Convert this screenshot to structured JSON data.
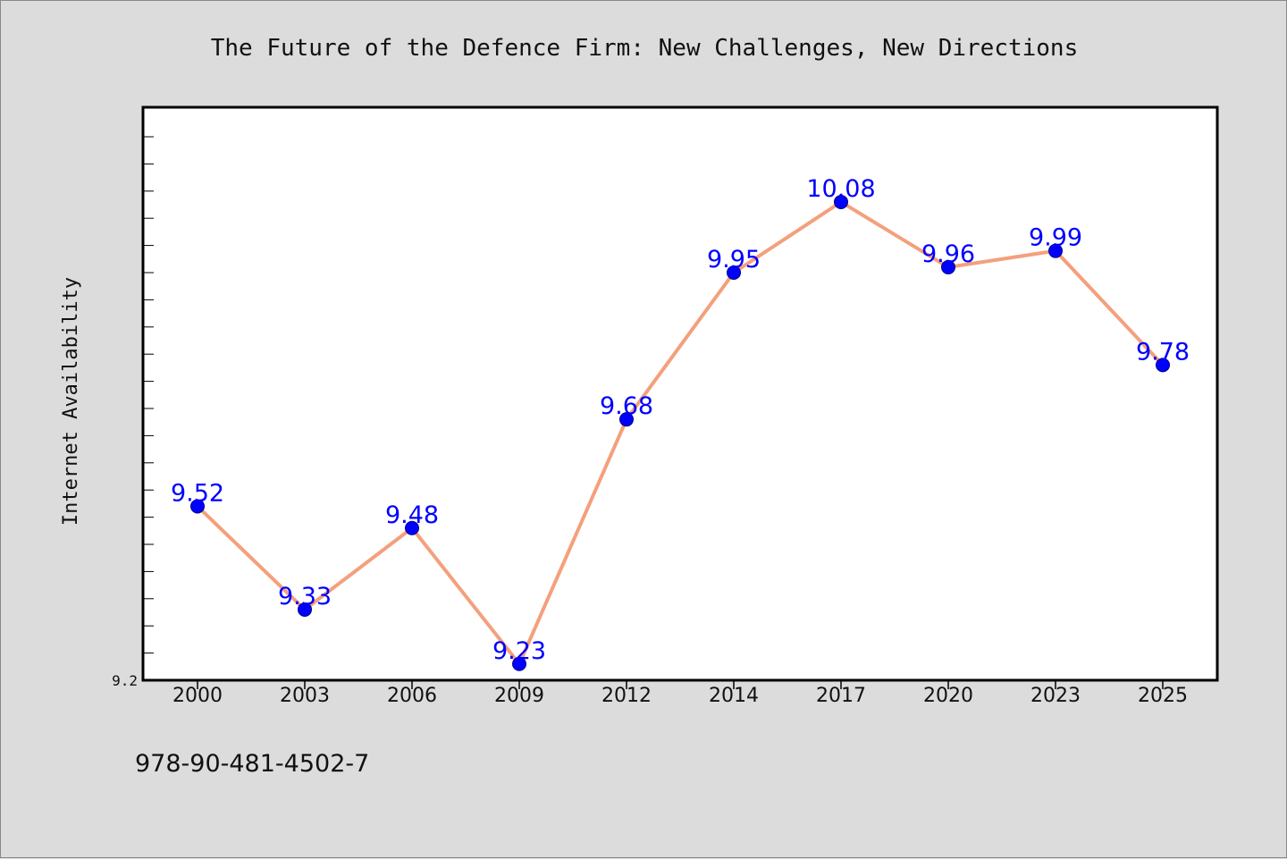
{
  "chart_data": {
    "type": "line",
    "title": "The Future of the Defence Firm: New Challenges, New Directions",
    "xlabel": "",
    "ylabel": "Internet Availability",
    "categories": [
      "2000",
      "2003",
      "2006",
      "2009",
      "2012",
      "2014",
      "2017",
      "2020",
      "2023",
      "2025"
    ],
    "series": [
      {
        "values": [
          9.52,
          9.33,
          9.48,
          9.23,
          9.68,
          9.95,
          10.08,
          9.96,
          9.99,
          9.78
        ],
        "data_labels": [
          "9.52",
          "9.33",
          "9.48",
          "9.23",
          "9.68",
          "9.95",
          "10.08",
          "9.96",
          "9.99",
          "9.78"
        ],
        "line_color": "#f4a07c",
        "marker_color": "#0000ff",
        "label_color": "#0000ff"
      }
    ],
    "ylim": [
      9.2,
      10.2
    ],
    "yticks_labeled": [
      "9.2"
    ],
    "grid": false,
    "legend": "none"
  },
  "footer": {
    "isbn": "978-90-481-4502-7"
  },
  "colors": {
    "background": "#dcdcdc",
    "plot_background": "#ffffff"
  }
}
